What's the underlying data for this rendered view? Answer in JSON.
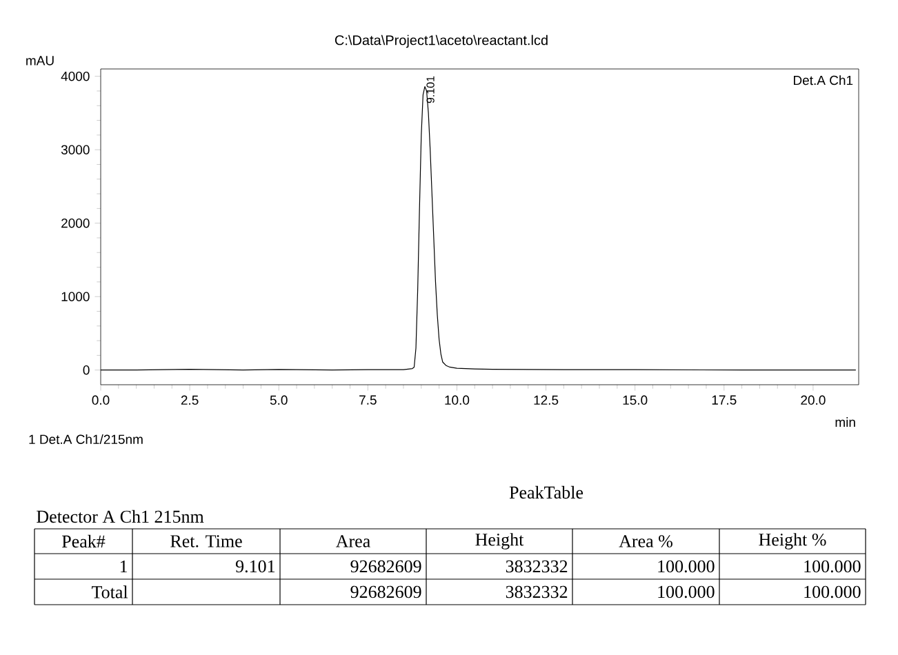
{
  "chart_data": {
    "type": "line",
    "title": "C:\\Data\\Project1\\aceto\\reactant.lcd",
    "xlabel": "min",
    "ylabel": "mAU",
    "x": [
      0,
      1.0,
      2.5,
      4.0,
      5.0,
      6.5,
      7.5,
      8.5,
      8.75,
      8.8,
      8.85,
      8.9,
      8.95,
      9.0,
      9.05,
      9.1,
      9.15,
      9.2,
      9.25,
      9.3,
      9.35,
      9.4,
      9.45,
      9.5,
      9.55,
      9.6,
      9.7,
      9.8,
      10.0,
      10.5,
      11.0,
      13.0,
      15.0,
      18.0,
      21.2
    ],
    "series": [
      {
        "name": "Det.A Ch1",
        "color": "#000000",
        "values": [
          0,
          0,
          10,
          0,
          8,
          0,
          5,
          5,
          20,
          40,
          300,
          1100,
          2200,
          3200,
          3750,
          3860,
          3800,
          3500,
          3000,
          2400,
          1800,
          1200,
          750,
          420,
          220,
          110,
          60,
          40,
          25,
          15,
          10,
          5,
          5,
          0,
          0
        ]
      }
    ],
    "xlim": [
      0,
      21.28
    ],
    "ylim": [
      -200,
      4100
    ],
    "xticks": [
      {
        "value": 0,
        "label": "0.0"
      },
      {
        "value": 2.5,
        "label": "2.5"
      },
      {
        "value": 5,
        "label": "5.0"
      },
      {
        "value": 7.5,
        "label": "7.5"
      },
      {
        "value": 10,
        "label": "10.0"
      },
      {
        "value": 12.5,
        "label": "12.5"
      },
      {
        "value": 15,
        "label": "15.0"
      },
      {
        "value": 17.5,
        "label": "17.5"
      },
      {
        "value": 20,
        "label": "20.0"
      }
    ],
    "yticks": [
      0,
      1000,
      2000,
      3000,
      4000
    ],
    "grid": false,
    "legend": "top right",
    "marker": "none",
    "line_style": "solid",
    "annotations": [
      {
        "text": "9.101",
        "x": 9.101,
        "y": 3860
      },
      "1  Det.A Ch1/215nm",
      "PeakTable",
      "Detector A Ch1 215nm",
      "Peak#",
      "Ret. Time",
      "Area",
      "Height",
      "Area %",
      "Height %",
      "1",
      "9.101",
      "92682609",
      "3832332",
      "100.000",
      "100.000",
      "Total",
      "92682609",
      "3832332",
      "100.000",
      "100.000"
    ]
  }
}
